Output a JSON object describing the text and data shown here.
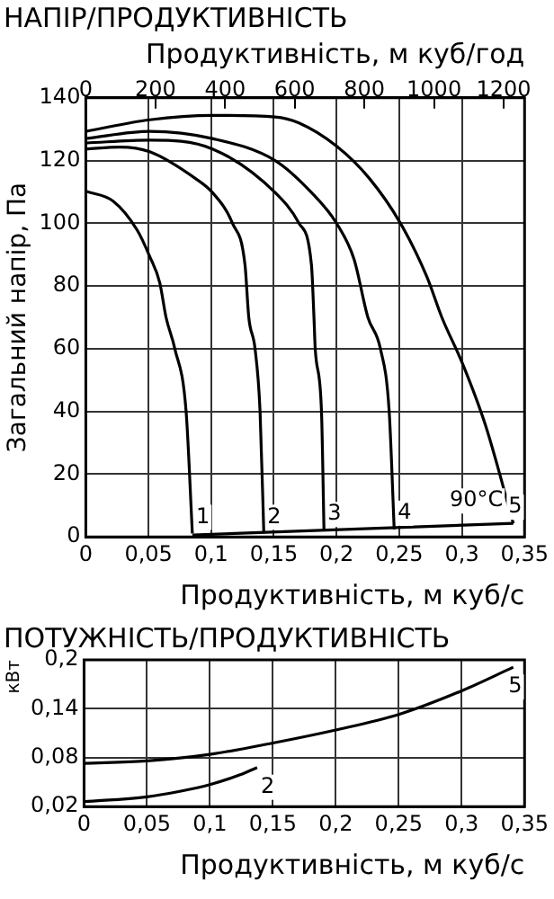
{
  "chart_data": [
    {
      "type": "line",
      "title": "НАПІР/ПРОДУКТИВНІСТЬ",
      "xlabel": "Продуктивність, м куб/с",
      "ylabel": "Загальний напір, Па",
      "x2label": "Продуктивність, м куб/год",
      "series": [
        {
          "name": "1",
          "color": "#000000",
          "x": [
            0,
            0.022,
            0.041,
            0.051,
            0.059,
            0.064,
            0.071,
            0.08,
            0.085
          ],
          "values": [
            110.2,
            107,
            97.8,
            89.4,
            81,
            70,
            60,
            40,
            1.1
          ]
        },
        {
          "name": "2",
          "color": "#000000",
          "x": [
            0,
            0.027,
            0.051,
            0.087,
            0.101,
            0.117,
            0.127,
            0.13,
            0.135,
            0.139,
            0.142
          ],
          "values": [
            123.7,
            124.3,
            122.8,
            114.4,
            109.8,
            100,
            86.7,
            70,
            60,
            40,
            1.1
          ]
        },
        {
          "name": "3",
          "color": "#000000",
          "x": [
            0,
            0.051,
            0.101,
            0.151,
            0.17,
            0.18,
            0.182,
            0.183,
            0.188,
            0.19
          ],
          "values": [
            125.6,
            126.5,
            123.7,
            109.8,
            100,
            86.7,
            70,
            60,
            40,
            2
          ]
        },
        {
          "name": "4",
          "color": "#000000",
          "x": [
            0,
            0.051,
            0.101,
            0.151,
            0.18,
            0.2,
            0.214,
            0.225,
            0.235,
            0.242,
            0.246
          ],
          "values": [
            127,
            129.3,
            127,
            120,
            109.8,
            100,
            88.5,
            70,
            60,
            40,
            2.4
          ]
        },
        {
          "name": "5",
          "color": "#000000",
          "x": [
            0,
            0.051,
            0.101,
            0.151,
            0.17,
            0.2,
            0.226,
            0.251,
            0.272,
            0.284,
            0.301,
            0.319,
            0.341
          ],
          "values": [
            129.3,
            133,
            134.4,
            133.9,
            132,
            124.6,
            114.4,
            100,
            83,
            70,
            54.8,
            35.4,
            4.3
          ]
        },
        {
          "color": "#000000",
          "x": [
            0.085,
            0.341
          ],
          "values": [
            0.6,
            4.3
          ]
        }
      ],
      "xlim": [
        0,
        0.35
      ],
      "xticks": [
        0,
        {
          "value": 0.05,
          "label": "0,05"
        },
        {
          "value": 0.1,
          "label": "0,1"
        },
        {
          "value": 0.15,
          "label": "0,15"
        },
        {
          "value": 0.2,
          "label": "0,2"
        },
        {
          "value": 0.25,
          "label": "0,25"
        },
        {
          "value": 0.3,
          "label": "0,3"
        },
        {
          "value": 0.35,
          "label": "0,35"
        }
      ],
      "x2lim": [
        0,
        1260
      ],
      "x2ticks": [
        0,
        200,
        400,
        600,
        800,
        1000,
        1200
      ],
      "ylim": [
        0,
        140
      ],
      "yticks": [
        0,
        20,
        40,
        60,
        80,
        100,
        120,
        140
      ],
      "annotations": [
        "90°C"
      ],
      "grid": true,
      "legend": false
    },
    {
      "type": "line",
      "title": "ПОТУЖНІСТЬ/ПРОДУКТИВНІСТЬ",
      "xlabel": "Продуктивність, м куб/с",
      "ylabel": "кВт",
      "series": [
        {
          "name": "5",
          "color": "#000000",
          "x": [
            0,
            0.05,
            0.1,
            0.15,
            0.2,
            0.25,
            0.3,
            0.341
          ],
          "values": [
            0.073,
            0.076,
            0.084,
            0.098,
            0.114,
            0.133,
            0.162,
            0.191
          ]
        },
        {
          "name": "2",
          "color": "#000000",
          "x": [
            0,
            0.05,
            0.077,
            0.1,
            0.124,
            0.1375
          ],
          "values": [
            0.026,
            0.032,
            0.039,
            0.047,
            0.059,
            0.068
          ]
        }
      ],
      "xlim": [
        0,
        0.35
      ],
      "xticks": [
        0,
        {
          "value": 0.05,
          "label": "0,05"
        },
        {
          "value": 0.1,
          "label": "0,1"
        },
        {
          "value": 0.15,
          "label": "0,15"
        },
        {
          "value": 0.2,
          "label": "0,2"
        },
        {
          "value": 0.25,
          "label": "0,25"
        },
        {
          "value": 0.3,
          "label": "0,3"
        },
        {
          "value": 0.35,
          "label": "0,35"
        }
      ],
      "ylim": [
        0.02,
        0.2
      ],
      "yticks": [
        {
          "value": 0.02,
          "label": "0,02"
        },
        {
          "value": 0.08,
          "label": "0,08"
        },
        {
          "value": 0.14,
          "label": "0,14"
        },
        {
          "value": 0.2,
          "label": "0,2"
        }
      ],
      "grid": true,
      "legend": false
    }
  ]
}
